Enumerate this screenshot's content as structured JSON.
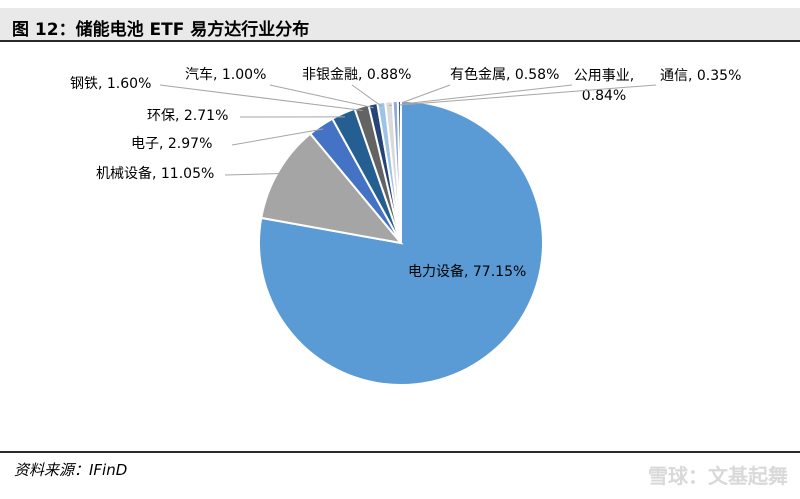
{
  "header": {
    "title": "图 12：储能电池 ETF 易方达行业分布"
  },
  "footer": {
    "source": "资料来源：IFinD",
    "watermark": "雪球：文基起舞"
  },
  "chart_data": {
    "type": "pie",
    "title": "",
    "slices": [
      {
        "name": "电力设备",
        "value": 77.15,
        "label": "电力设备, 77.15%",
        "color": "#5b9bd5"
      },
      {
        "name": "机械设备",
        "value": 11.05,
        "label": "机械设备, 11.05%",
        "color": "#a5a5a5"
      },
      {
        "name": "电子",
        "value": 2.97,
        "label": "电子, 2.97%",
        "color": "#4472c4"
      },
      {
        "name": "环保",
        "value": 2.71,
        "label": "环保, 2.71%",
        "color": "#255e91"
      },
      {
        "name": "钢铁",
        "value": 1.6,
        "label": "钢铁, 1.60%",
        "color": "#636363"
      },
      {
        "name": "汽车",
        "value": 1.0,
        "label": "汽车, 1.00%",
        "color": "#264478"
      },
      {
        "name": "非银金融",
        "value": 0.88,
        "label": "非银金融, 0.88%",
        "color": "#9dc3e6"
      },
      {
        "name": "公用事业",
        "value": 0.84,
        "label": "公用事业,\n0.84%",
        "color": "#d9d9d9"
      },
      {
        "name": "有色金属",
        "value": 0.58,
        "label": "有色金属, 0.58%",
        "color": "#8faadc"
      },
      {
        "name": "通信",
        "value": 0.35,
        "label": "通信, 0.35%",
        "color": "#2f5597"
      }
    ]
  }
}
